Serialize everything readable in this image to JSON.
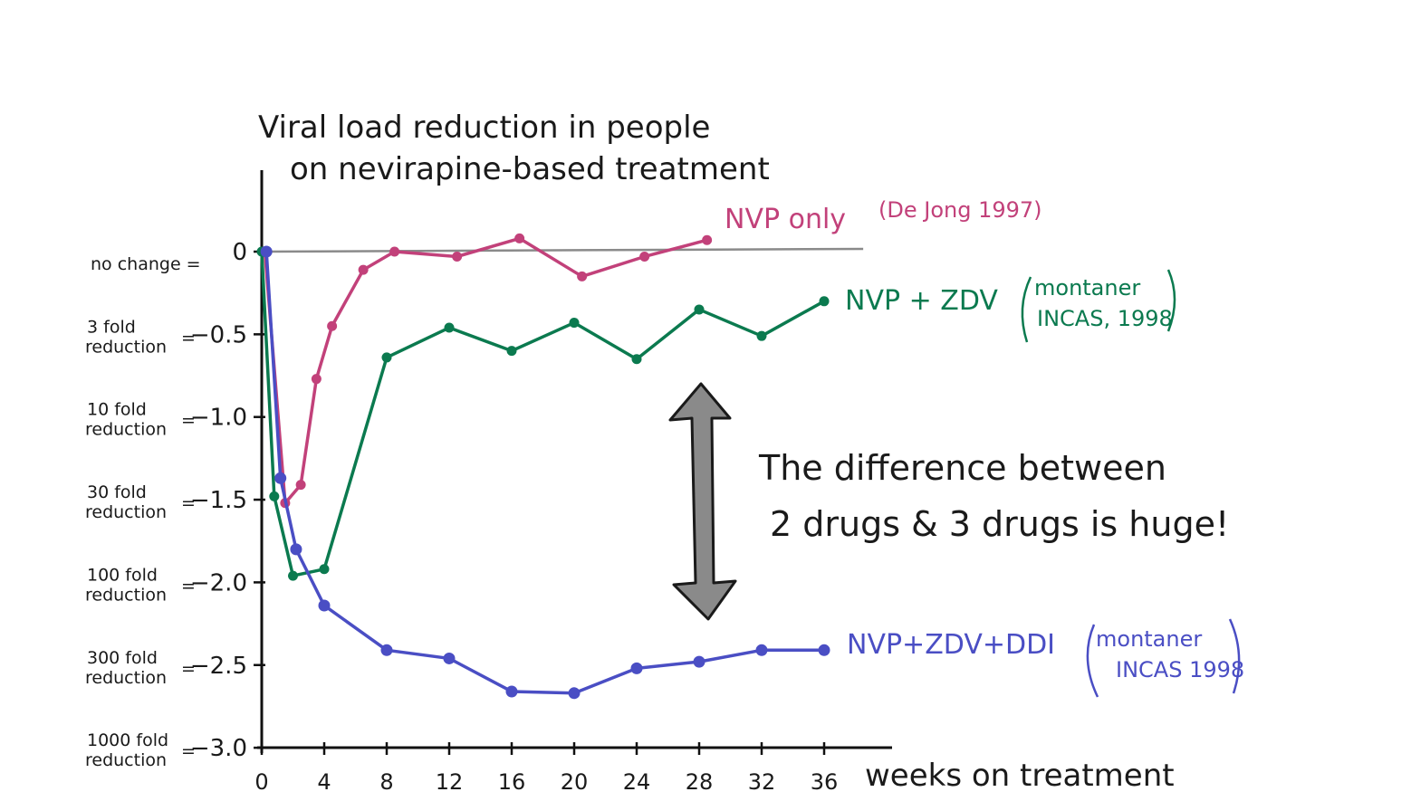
{
  "chart_data": {
    "type": "line",
    "title": [
      "Viral load reduction in people",
      "on nevirapine-based treatment"
    ],
    "xlabel": "weeks on treatment",
    "ylabel": "",
    "xlim": [
      0,
      40
    ],
    "ylim": [
      -3.0,
      0.5
    ],
    "x_ticks": [
      0,
      4,
      8,
      12,
      16,
      20,
      24,
      28,
      32,
      36
    ],
    "y_ticks": [
      {
        "value": 0,
        "label": "0",
        "description": "no change ="
      },
      {
        "value": -0.5,
        "label": "-0.5",
        "description": "3 fold reduction ="
      },
      {
        "value": -1.0,
        "label": "-1.0",
        "description": "10 fold reduction ="
      },
      {
        "value": -1.5,
        "label": "-1.5",
        "description": "30 fold reduction ="
      },
      {
        "value": -2.0,
        "label": "-2.0",
        "description": "100 fold reduction ="
      },
      {
        "value": -2.5,
        "label": "-2.5",
        "description": "300 fold reduction ="
      },
      {
        "value": -3.0,
        "label": "-3.0",
        "description": "1000 fold reduction ="
      }
    ],
    "grid": false,
    "reference_line": {
      "y": 0,
      "color": "#8a8a8a"
    },
    "series": [
      {
        "name": "NVP only",
        "citation": "(De Jong 1997)",
        "color": "#c2417a",
        "x": [
          0.2,
          1.5,
          2.5,
          3.5,
          4.5,
          6.5,
          8.5,
          12.5,
          16.5,
          20.5,
          24.5,
          28.5
        ],
        "y": [
          0.0,
          -1.52,
          -1.41,
          -0.77,
          -0.45,
          -0.11,
          0.0,
          -0.03,
          0.08,
          -0.15,
          -0.03,
          0.07
        ]
      },
      {
        "name": "NVP + ZDV",
        "citation": [
          "montaner",
          "INCAS, 1998"
        ],
        "color": "#0b7a4f",
        "x": [
          0,
          0.8,
          2,
          4,
          8,
          12,
          16,
          20,
          24,
          28,
          32,
          36
        ],
        "y": [
          0.0,
          -1.48,
          -1.96,
          -1.92,
          -0.64,
          -0.46,
          -0.6,
          -0.43,
          -0.65,
          -0.35,
          -0.51,
          -0.3
        ]
      },
      {
        "name": "NVP+ZDV+DDI",
        "citation": [
          "montaner",
          "INCAS 1998"
        ],
        "color": "#4a4ec4",
        "x": [
          0.3,
          1.2,
          2.2,
          4,
          8,
          12,
          16,
          20,
          24,
          28,
          32,
          36
        ],
        "y": [
          0.0,
          -1.37,
          -1.8,
          -2.14,
          -2.41,
          -2.46,
          -2.66,
          -2.67,
          -2.52,
          -2.48,
          -2.41,
          -2.41
        ]
      }
    ],
    "annotations": [
      {
        "text": [
          "The difference between",
          "2 drugs & 3 drugs is huge!"
        ],
        "type": "callout"
      },
      {
        "text": "",
        "type": "double-arrow",
        "color": "#8a8a8a",
        "from_series": "NVP + ZDV",
        "to_series": "NVP+ZDV+DDI"
      }
    ]
  }
}
